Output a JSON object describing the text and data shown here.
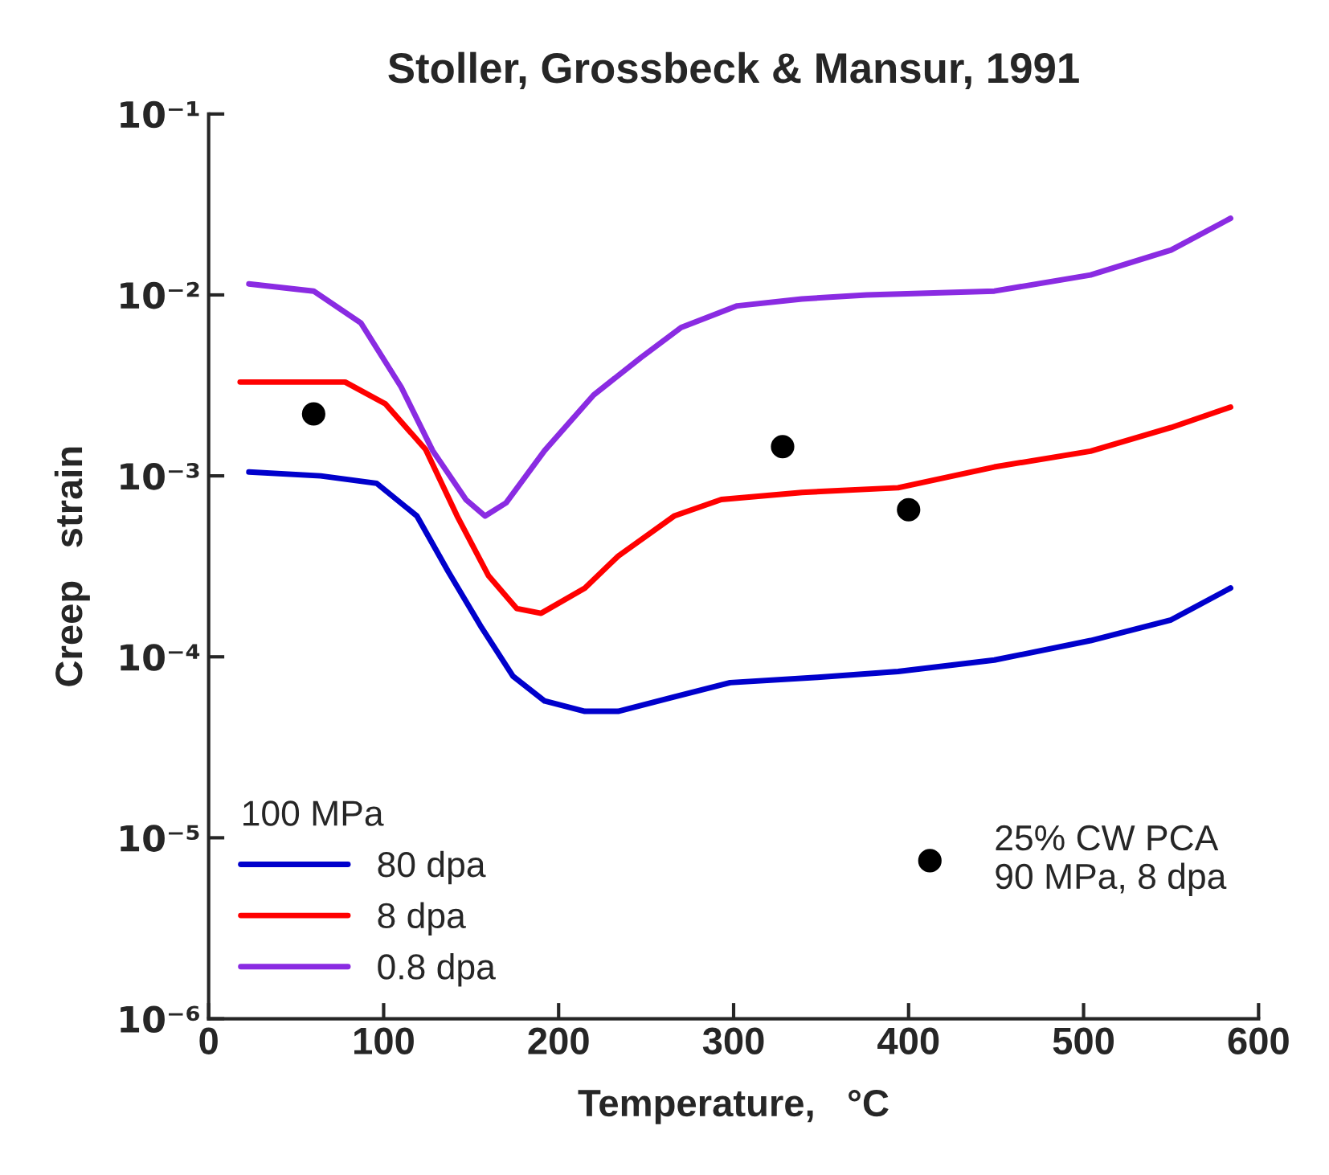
{
  "chart_data": {
    "type": "line",
    "title": "Stoller, Grossbeck & Mansur, 1991",
    "xlabel": "Temperature,   °C",
    "ylabel": "Creep   strain",
    "legend_title": "100 MPa",
    "legend": "bottom left",
    "log": "y",
    "grid": false,
    "marker": "none",
    "line_style": "solid",
    "xlim": [
      0,
      600
    ],
    "xticks": [
      0,
      100,
      200,
      300,
      400,
      500,
      600
    ],
    "ylim": [
      1e-06,
      0.1
    ],
    "yticks": [
      {
        "value": 1e-06,
        "label": "10⁻⁶"
      },
      {
        "value": 1e-05,
        "label": "10⁻⁵"
      },
      {
        "value": 0.0001,
        "label": "10⁻⁴"
      },
      {
        "value": 0.001,
        "label": "10⁻³"
      },
      {
        "value": 0.01,
        "label": "10⁻²"
      },
      {
        "value": 0.1,
        "label": "10⁻¹"
      }
    ],
    "series": [
      {
        "name": "80 dpa",
        "color": "#0000cc",
        "x": [
          23,
          64,
          96,
          119,
          137,
          156,
          174,
          192,
          215,
          234,
          266,
          298,
          348,
          394,
          449,
          504,
          550,
          584
        ],
        "values": [
          0.00105,
          0.001,
          0.00091,
          0.0006,
          0.000295,
          0.000145,
          7.8e-05,
          5.7e-05,
          5e-05,
          5e-05,
          6e-05,
          7.2e-05,
          7.7e-05,
          8.3e-05,
          9.6e-05,
          0.000123,
          0.00016,
          0.00024
        ]
      },
      {
        "name": "8 dpa",
        "color": "#ff0000",
        "x": [
          18,
          78,
          101,
          124,
          142,
          160,
          176,
          190,
          215,
          234,
          266,
          293,
          339,
          394,
          449,
          504,
          550,
          584
        ],
        "values": [
          0.0033,
          0.0033,
          0.0025,
          0.0014,
          0.0006,
          0.00028,
          0.000185,
          0.000174,
          0.00024,
          0.00036,
          0.0006,
          0.00074,
          0.00081,
          0.00086,
          0.00112,
          0.00137,
          0.00185,
          0.0024
        ]
      },
      {
        "name": "0.8 dpa",
        "color": "#8a2be2",
        "x": [
          23,
          60,
          87,
          110,
          128,
          147,
          158,
          170,
          192,
          220,
          247,
          270,
          302,
          339,
          376,
          449,
          504,
          550,
          584
        ],
        "values": [
          0.0115,
          0.0105,
          0.007,
          0.0031,
          0.00138,
          0.00074,
          0.0006,
          0.00071,
          0.00138,
          0.0028,
          0.0045,
          0.0066,
          0.0087,
          0.0095,
          0.01,
          0.0105,
          0.0129,
          0.0177,
          0.0265
        ]
      },
      {
        "name": "25% CW PCA\n90 MPa, 8 dpa",
        "type": "scatter",
        "marker": "circle",
        "color": "#000000",
        "x": [
          60,
          328,
          400
        ],
        "values": [
          0.0022,
          0.00145,
          0.00065
        ]
      }
    ]
  }
}
